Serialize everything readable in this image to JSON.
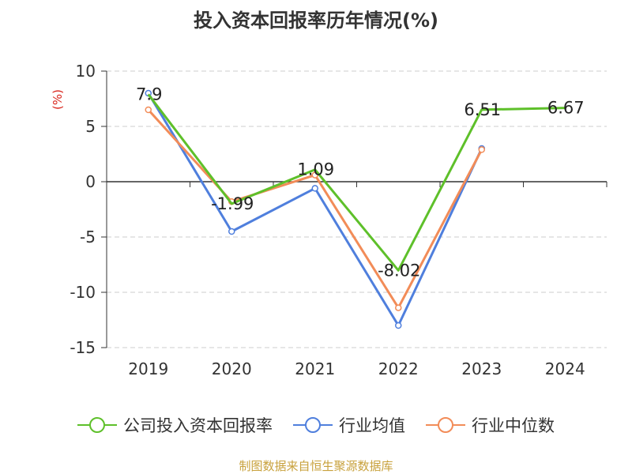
{
  "title": "投入资本回报率历年情况(%)",
  "source": "制图数据来自恒生聚源数据库",
  "chart_data": {
    "type": "line",
    "title": "投入资本回报率历年情况(%)",
    "ylabel": "(%)",
    "categories": [
      "2019",
      "2020",
      "2021",
      "2022",
      "2023",
      "2024"
    ],
    "ylim": [
      -15,
      10
    ],
    "yticks": [
      10,
      5,
      0,
      -5,
      -10,
      -15
    ],
    "grid": true,
    "legend_position": "bottom",
    "series": [
      {
        "name": "公司投入资本回报率",
        "color": "#5ec02a",
        "values": [
          7.9,
          -1.99,
          1.09,
          -8.02,
          6.51,
          6.67
        ],
        "labels": [
          "7.9",
          "-1.99",
          "1.09",
          "-8.02",
          "6.51",
          "6.67"
        ]
      },
      {
        "name": "行业均值",
        "color": "#4f7fdd",
        "values": [
          8.0,
          -4.5,
          -0.6,
          -13.0,
          3.0,
          null
        ],
        "labels": []
      },
      {
        "name": "行业中位数",
        "color": "#f28c58",
        "values": [
          6.5,
          -1.8,
          0.6,
          -11.4,
          2.9,
          null
        ],
        "labels": []
      }
    ]
  }
}
